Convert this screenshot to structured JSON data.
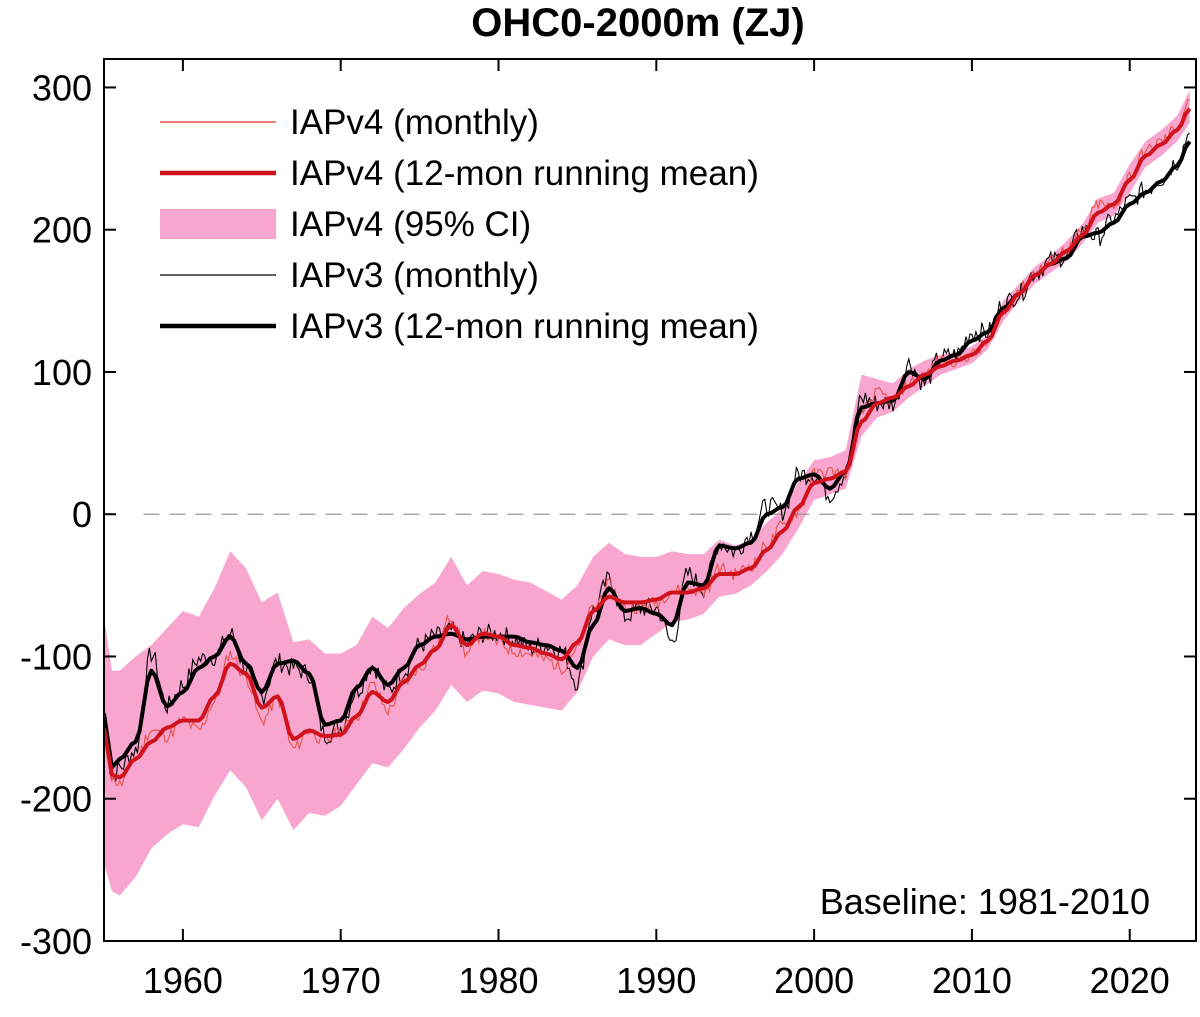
{
  "chart_data": {
    "type": "line",
    "title": "OHC0-2000m (ZJ)",
    "xlabel": "",
    "ylabel": "",
    "xlim": [
      1955,
      2024.2
    ],
    "ylim": [
      -300,
      320
    ],
    "x_ticks": [
      1960,
      1970,
      1980,
      1990,
      2000,
      2010,
      2020
    ],
    "y_ticks": [
      -300,
      -200,
      -100,
      0,
      100,
      200,
      300
    ],
    "zero_line": true,
    "grid": false,
    "legend_position": "top-left",
    "annotation": "Baseline: 1981-2010",
    "colors": {
      "iapv4_monthly": "#e8524a",
      "iapv4_running": "#d0121c",
      "iapv4_ci": "#f8a6cf",
      "iapv3_monthly": "#000000",
      "iapv3_running": "#000000",
      "zero_line": "#999999"
    },
    "series": [
      {
        "name": "IAPv4 (monthly)",
        "role": "monthly",
        "x": [
          1955.0,
          1955.5,
          1956,
          1957,
          1958,
          1959,
          1960,
          1961,
          1962,
          1963,
          1964,
          1965,
          1966,
          1967,
          1968,
          1969,
          1970,
          1971,
          1972,
          1973,
          1974,
          1975,
          1976,
          1977,
          1978,
          1979,
          1980,
          1981,
          1982,
          1983,
          1984,
          1985,
          1986,
          1987,
          1988,
          1989,
          1990,
          1991,
          1992,
          1993,
          1994,
          1995,
          1996,
          1997,
          1998,
          1999,
          2000,
          2001,
          2002,
          2003,
          2004,
          2005,
          2006,
          2007,
          2008,
          2009,
          2010,
          2011,
          2012,
          2013,
          2014,
          2015,
          2016,
          2017,
          2018,
          2019,
          2020,
          2021,
          2022,
          2023,
          2023.8
        ],
        "values": [
          -145,
          -185,
          -190,
          -172,
          -152,
          -156,
          -145,
          -152,
          -132,
          -98,
          -115,
          -145,
          -130,
          -165,
          -152,
          -160,
          -152,
          -142,
          -120,
          -138,
          -118,
          -108,
          -94,
          -72,
          -98,
          -84,
          -90,
          -96,
          -98,
          -102,
          -108,
          -94,
          -66,
          -50,
          -66,
          -65,
          -62,
          -54,
          -52,
          -55,
          -38,
          -42,
          -36,
          -22,
          -8,
          2,
          28,
          30,
          28,
          72,
          85,
          80,
          92,
          98,
          108,
          108,
          112,
          120,
          145,
          158,
          170,
          178,
          186,
          198,
          218,
          215,
          238,
          255,
          262,
          272,
          292
        ]
      },
      {
        "name": "IAPv4 (12-mon running mean)",
        "role": "running",
        "x": [
          1955.0,
          1955.5,
          1956,
          1957,
          1958,
          1959,
          1960,
          1961,
          1962,
          1963,
          1964,
          1965,
          1966,
          1967,
          1968,
          1969,
          1970,
          1971,
          1972,
          1973,
          1974,
          1975,
          1976,
          1977,
          1978,
          1979,
          1980,
          1981,
          1982,
          1983,
          1984,
          1985,
          1986,
          1987,
          1988,
          1989,
          1990,
          1991,
          1992,
          1993,
          1994,
          1995,
          1996,
          1997,
          1998,
          1999,
          2000,
          2001,
          2002,
          2003,
          2004,
          2005,
          2006,
          2007,
          2008,
          2009,
          2010,
          2011,
          2012,
          2013,
          2014,
          2015,
          2016,
          2017,
          2018,
          2019,
          2020,
          2021,
          2022,
          2023,
          2023.8
        ],
        "values": [
          -150,
          -183,
          -185,
          -172,
          -160,
          -150,
          -145,
          -145,
          -128,
          -105,
          -112,
          -136,
          -128,
          -158,
          -152,
          -156,
          -155,
          -142,
          -125,
          -132,
          -118,
          -106,
          -95,
          -78,
          -92,
          -84,
          -86,
          -92,
          -94,
          -98,
          -102,
          -90,
          -68,
          -58,
          -62,
          -62,
          -60,
          -55,
          -55,
          -52,
          -42,
          -42,
          -38,
          -25,
          -12,
          5,
          22,
          25,
          30,
          65,
          78,
          82,
          90,
          98,
          104,
          108,
          112,
          122,
          142,
          155,
          168,
          176,
          185,
          196,
          212,
          218,
          235,
          252,
          260,
          270,
          285
        ]
      },
      {
        "name": "IAPv4 (95% CI)",
        "role": "ci",
        "x": [
          1955.0,
          1955.5,
          1956,
          1957,
          1958,
          1959,
          1960,
          1961,
          1962,
          1963,
          1964,
          1965,
          1966,
          1967,
          1968,
          1969,
          1970,
          1971,
          1972,
          1973,
          1974,
          1975,
          1976,
          1977,
          1978,
          1979,
          1980,
          1981,
          1982,
          1983,
          1984,
          1985,
          1986,
          1987,
          1988,
          1989,
          1990,
          1991,
          1992,
          1993,
          1994,
          1995,
          1996,
          1997,
          1998,
          1999,
          2000,
          2001,
          2002,
          2003,
          2004,
          2005,
          2006,
          2007,
          2008,
          2009,
          2010,
          2011,
          2012,
          2013,
          2014,
          2015,
          2016,
          2017,
          2018,
          2019,
          2020,
          2021,
          2022,
          2023,
          2023.8
        ],
        "lower": [
          -245,
          -265,
          -268,
          -255,
          -235,
          -225,
          -218,
          -220,
          -198,
          -180,
          -192,
          -215,
          -200,
          -222,
          -210,
          -212,
          -205,
          -190,
          -175,
          -178,
          -165,
          -150,
          -138,
          -120,
          -132,
          -124,
          -126,
          -132,
          -134,
          -136,
          -138,
          -125,
          -100,
          -88,
          -92,
          -92,
          -84,
          -76,
          -74,
          -70,
          -58,
          -56,
          -50,
          -40,
          -28,
          -10,
          10,
          14,
          18,
          55,
          68,
          72,
          82,
          90,
          98,
          102,
          106,
          116,
          136,
          150,
          162,
          170,
          178,
          190,
          205,
          210,
          226,
          244,
          252,
          262,
          275
        ],
        "upper": [
          -72,
          -110,
          -110,
          -100,
          -92,
          -80,
          -68,
          -72,
          -52,
          -26,
          -38,
          -62,
          -55,
          -90,
          -88,
          -98,
          -98,
          -92,
          -72,
          -80,
          -66,
          -56,
          -48,
          -30,
          -50,
          -40,
          -42,
          -46,
          -48,
          -54,
          -60,
          -50,
          -30,
          -20,
          -28,
          -30,
          -30,
          -26,
          -28,
          -28,
          -18,
          -22,
          -18,
          -6,
          4,
          22,
          38,
          40,
          45,
          98,
          95,
          92,
          102,
          108,
          112,
          114,
          118,
          126,
          150,
          162,
          174,
          182,
          192,
          204,
          222,
          226,
          246,
          262,
          270,
          280,
          298
        ]
      },
      {
        "name": "IAPv3 (monthly)",
        "role": "monthly",
        "x": [
          1955.0,
          1955.5,
          1956,
          1957,
          1958,
          1959,
          1960,
          1961,
          1962,
          1963,
          1964,
          1965,
          1966,
          1967,
          1968,
          1969,
          1970,
          1971,
          1972,
          1973,
          1974,
          1975,
          1976,
          1977,
          1978,
          1979,
          1980,
          1981,
          1982,
          1983,
          1984,
          1985,
          1986,
          1987,
          1988,
          1989,
          1990,
          1991,
          1992,
          1993,
          1994,
          1995,
          1996,
          1997,
          1998,
          1999,
          2000,
          2001,
          2002,
          2003,
          2004,
          2005,
          2006,
          2007,
          2008,
          2009,
          2010,
          2011,
          2012,
          2013,
          2014,
          2015,
          2016,
          2017,
          2018,
          2019,
          2020,
          2021,
          2022,
          2023,
          2023.8
        ],
        "values": [
          -138,
          -186,
          -178,
          -166,
          -98,
          -135,
          -120,
          -102,
          -100,
          -84,
          -108,
          -128,
          -104,
          -108,
          -112,
          -155,
          -150,
          -124,
          -106,
          -124,
          -110,
          -92,
          -86,
          -82,
          -90,
          -84,
          -84,
          -88,
          -94,
          -92,
          -96,
          -118,
          -68,
          -46,
          -72,
          -66,
          -66,
          -90,
          -42,
          -52,
          -20,
          -26,
          -14,
          6,
          2,
          28,
          28,
          14,
          28,
          82,
          78,
          78,
          106,
          92,
          110,
          112,
          128,
          128,
          148,
          155,
          170,
          178,
          182,
          200,
          195,
          208,
          220,
          228,
          236,
          248,
          268
        ]
      },
      {
        "name": "IAPv3 (12-mon running mean)",
        "role": "running",
        "x": [
          1955.0,
          1955.5,
          1956,
          1957,
          1958,
          1959,
          1960,
          1961,
          1962,
          1963,
          1964,
          1965,
          1966,
          1967,
          1968,
          1969,
          1970,
          1971,
          1972,
          1973,
          1974,
          1975,
          1976,
          1977,
          1978,
          1979,
          1980,
          1981,
          1982,
          1983,
          1984,
          1985,
          1986,
          1987,
          1988,
          1989,
          1990,
          1991,
          1992,
          1993,
          1994,
          1995,
          1996,
          1997,
          1998,
          1999,
          2000,
          2001,
          2002,
          2003,
          2004,
          2005,
          2006,
          2007,
          2008,
          2009,
          2010,
          2011,
          2012,
          2013,
          2014,
          2015,
          2016,
          2017,
          2018,
          2019,
          2020,
          2021,
          2022,
          2023,
          2023.8
        ],
        "values": [
          -140,
          -178,
          -172,
          -160,
          -110,
          -135,
          -125,
          -108,
          -100,
          -86,
          -105,
          -125,
          -105,
          -103,
          -112,
          -148,
          -145,
          -122,
          -108,
          -120,
          -108,
          -92,
          -86,
          -84,
          -88,
          -86,
          -86,
          -86,
          -90,
          -92,
          -96,
          -108,
          -78,
          -52,
          -68,
          -66,
          -70,
          -78,
          -48,
          -50,
          -22,
          -24,
          -20,
          0,
          5,
          25,
          28,
          18,
          30,
          75,
          78,
          80,
          100,
          95,
          108,
          112,
          122,
          128,
          145,
          155,
          168,
          176,
          180,
          195,
          198,
          205,
          218,
          226,
          234,
          245,
          262
        ]
      }
    ],
    "legend": [
      {
        "label": "IAPv4 (monthly)",
        "style": "thin-red"
      },
      {
        "label": "IAPv4 (12-mon running mean)",
        "style": "thick-red"
      },
      {
        "label": "IAPv4 (95% CI)",
        "style": "pink-band"
      },
      {
        "label": "IAPv3 (monthly)",
        "style": "thin-black"
      },
      {
        "label": "IAPv3 (12-mon running mean)",
        "style": "thick-black"
      }
    ]
  }
}
